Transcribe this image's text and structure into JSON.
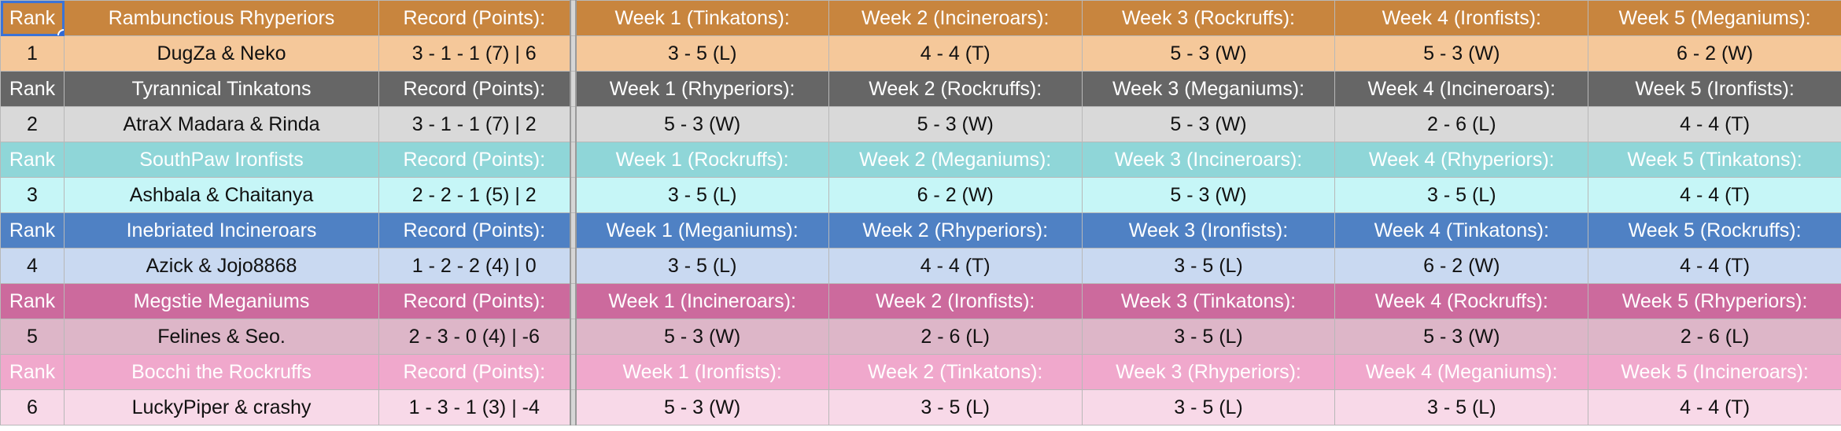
{
  "headers": {
    "rank": "Rank",
    "record": "Record (Points):"
  },
  "teams": [
    {
      "name": "Rambunctious Rhyperiors",
      "rank": "1",
      "players": "DugZa & Neko",
      "record": "3 - 1 - 1 (7) | 6",
      "weeks": [
        "Week 1 (Tinkatons):",
        "Week 2 (Incineroars):",
        "Week 3 (Rockruffs):",
        "Week 4 (Ironfists):",
        "Week 5 (Meganiums):"
      ],
      "results": [
        "3 - 5 (L)",
        "4 - 4 (T)",
        "5 - 3 (W)",
        "5 - 3 (W)",
        "6 - 2 (W)"
      ],
      "header_color": "#c8853e",
      "row_color": "#f5c89a"
    },
    {
      "name": "Tyrannical Tinkatons",
      "rank": "2",
      "players": "AtraX Madara & Rinda",
      "record": "3 - 1 - 1 (7) | 2",
      "weeks": [
        "Week 1 (Rhyperiors):",
        "Week 2 (Rockruffs):",
        "Week 3 (Meganiums):",
        "Week 4 (Incineroars):",
        "Week 5 (Ironfists):"
      ],
      "results": [
        "5 - 3 (W)",
        "5 - 3 (W)",
        "5 - 3 (W)",
        "2 - 6 (L)",
        "4 - 4 (T)"
      ],
      "header_color": "#666666",
      "row_color": "#d9d9d9"
    },
    {
      "name": "SouthPaw Ironfists",
      "rank": "3",
      "players": "Ashbala & Chaitanya",
      "record": "2 - 2 - 1 (5) | 2",
      "weeks": [
        "Week 1 (Rockruffs):",
        "Week 2 (Meganiums):",
        "Week 3 (Incineroars):",
        "Week 4 (Rhyperiors):",
        "Week 5 (Tinkatons):"
      ],
      "results": [
        "3 - 5 (L)",
        "6 - 2 (W)",
        "5 - 3 (W)",
        "3 - 5 (L)",
        "4 - 4 (T)"
      ],
      "header_color": "#8fd6d8",
      "row_color": "#c6f6f7"
    },
    {
      "name": "Inebriated Incineroars",
      "rank": "4",
      "players": "Azick & Jojo8868",
      "record": "1 - 2 - 2 (4) | 0",
      "weeks": [
        "Week 1 (Meganiums):",
        "Week 2 (Rhyperiors):",
        "Week 3 (Ironfists):",
        "Week 4 (Tinkatons):",
        "Week 5 (Rockruffs):"
      ],
      "results": [
        "3 - 5 (L)",
        "4 - 4 (T)",
        "3 - 5 (L)",
        "6 - 2 (W)",
        "4 - 4 (T)"
      ],
      "header_color": "#4f81c4",
      "row_color": "#c9d9f1"
    },
    {
      "name": "Megstie Meganiums",
      "rank": "5",
      "players": "Felines & Seo.",
      "record": "2 - 3 - 0 (4) | -6",
      "weeks": [
        "Week 1 (Incineroars):",
        "Week 2 (Ironfists):",
        "Week 3 (Tinkatons):",
        "Week 4 (Rockruffs):",
        "Week 5 (Rhyperiors):"
      ],
      "results": [
        "5 - 3 (W)",
        "2 - 6 (L)",
        "3 - 5 (L)",
        "5 - 3 (W)",
        "2 - 6 (L)"
      ],
      "header_color": "#cc6a9d",
      "row_color": "#ddb6c8"
    },
    {
      "name": "Bocchi the Rockruffs",
      "rank": "6",
      "players": "LuckyPiper & crashy",
      "record": "1 - 3 - 1 (3) | -4",
      "weeks": [
        "Week 1 (Ironfists):",
        "Week 2 (Tinkatons):",
        "Week 3 (Rhyperiors):",
        "Week 4 (Meganiums):",
        "Week 5 (Incineroars):"
      ],
      "results": [
        "5 - 3 (W)",
        "3 - 5 (L)",
        "3 - 5 (L)",
        "3 - 5 (L)",
        "4 - 4 (T)"
      ],
      "header_color": "#f0a8cc",
      "row_color": "#f8d9e8"
    }
  ],
  "selection": {
    "outline_color": "#3b73d6"
  }
}
